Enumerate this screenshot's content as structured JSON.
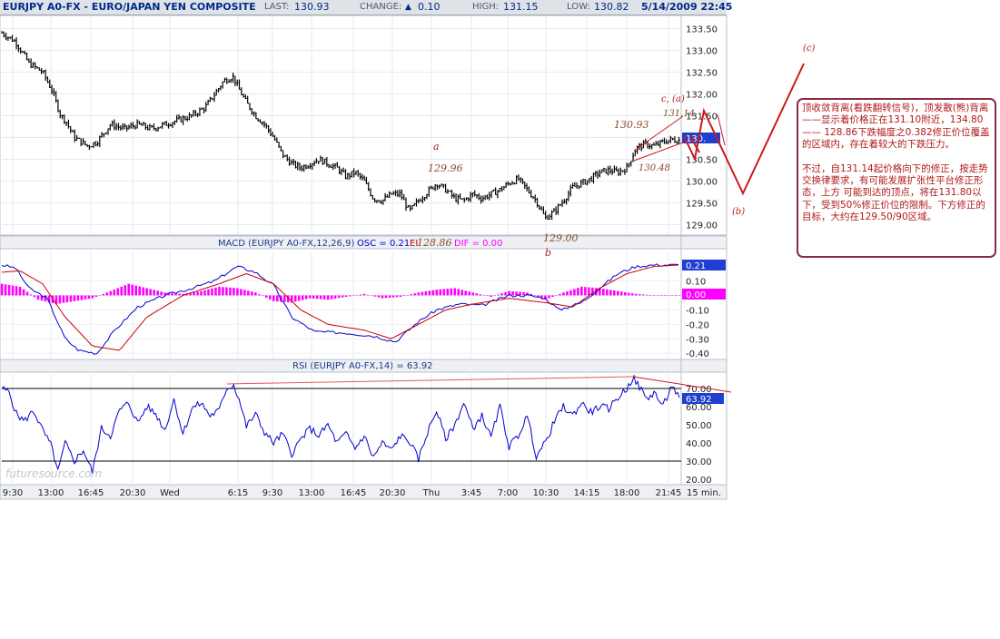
{
  "header": {
    "symbol": "EURJPY A0-FX - EURO/JAPAN YEN COMPOSITE",
    "last_label": "LAST:",
    "last_value": "130.93",
    "change_label": "CHANGE:",
    "change_arrow": "▲",
    "change_value": "0.10",
    "high_label": "HIGH:",
    "high_value": "131.15",
    "low_label": "LOW:",
    "low_value": "130.82",
    "datetime": "5/14/2009 22:45"
  },
  "colors": {
    "accent": "#002a8a",
    "macd_line": "#0000cc",
    "signal_line": "#cc0000",
    "histogram": "#ff00ff",
    "annotation": "#b01a1a",
    "annotation_value": "#8a4a2a"
  },
  "chart_data": [
    {
      "type": "bar",
      "name": "price",
      "ylim": [
        128.78,
        133.78
      ],
      "yticks": [
        "133.50",
        "133.00",
        "132.50",
        "132.00",
        "131.50",
        "131.00",
        "130.50",
        "130.00",
        "129.50",
        "129.00"
      ],
      "close_path_x": [
        0,
        15,
        30,
        45,
        55,
        65,
        70,
        80,
        95,
        105,
        120,
        135,
        150,
        165,
        180,
        195,
        210,
        225,
        235,
        245,
        255,
        262,
        270,
        280,
        290,
        300,
        310,
        320,
        330,
        340,
        350,
        360,
        370,
        380,
        390,
        400,
        410,
        420,
        430,
        440,
        450,
        460,
        470,
        480,
        490,
        500,
        510,
        520,
        530,
        540,
        550,
        560,
        570,
        580,
        590,
        600,
        610,
        620,
        630,
        640,
        650,
        660,
        670,
        680,
        690,
        700,
        710,
        720,
        730,
        740,
        748
      ],
      "close_path_y": [
        133.4,
        133.2,
        132.7,
        132.5,
        132.1,
        131.5,
        131.4,
        131.0,
        130.8,
        130.9,
        131.3,
        131.2,
        131.3,
        131.2,
        131.3,
        131.4,
        131.5,
        131.7,
        132.0,
        132.3,
        132.4,
        132.1,
        131.8,
        131.5,
        131.3,
        131.0,
        130.6,
        130.4,
        130.3,
        130.4,
        130.5,
        130.4,
        130.3,
        130.1,
        130.2,
        130.0,
        129.6,
        129.55,
        129.7,
        129.7,
        129.3,
        129.55,
        129.75,
        129.95,
        129.8,
        129.6,
        129.55,
        129.7,
        129.6,
        129.7,
        129.8,
        129.95,
        130.05,
        129.8,
        129.55,
        129.15,
        129.3,
        129.55,
        129.85,
        129.95,
        130.05,
        130.2,
        130.25,
        130.2,
        130.3,
        130.75,
        130.85,
        130.8,
        130.9,
        130.95,
        130.93
      ],
      "x_ticks": [
        "9:30",
        "13:00",
        "16:45",
        "20:30",
        "Wed",
        "6:15",
        "9:30",
        "13:00",
        "16:45",
        "20:30",
        "Thu",
        "3:45",
        "7:00",
        "10:30",
        "14:15",
        "18:00",
        "21:45"
      ],
      "x_unit": "15 min."
    },
    {
      "type": "line",
      "name": "MACD",
      "title": "MACD (EURJPY A0-FX,12,26,9)",
      "osc_label": "OSC = 0.21",
      "eu_label": "EI",
      "dif_label": "DIF = 0.00",
      "ylim": [
        -0.43,
        0.31
      ],
      "yticks": [
        "0.10",
        "0.00",
        "-0.10",
        "-0.20",
        "-0.30",
        "-0.40"
      ],
      "tag_macd": "0.21",
      "tag_hist": "0.00",
      "series": [
        {
          "key": "macd",
          "x": [
            0,
            15,
            30,
            50,
            70,
            85,
            105,
            125,
            150,
            180,
            210,
            235,
            260,
            280,
            300,
            320,
            345,
            380,
            410,
            435,
            460,
            480,
            505,
            530,
            560,
            580,
            600,
            615,
            640,
            660,
            680,
            700,
            720,
            748
          ],
          "values": [
            0.21,
            0.19,
            0.05,
            -0.02,
            -0.3,
            -0.38,
            -0.4,
            -0.24,
            -0.08,
            0.0,
            0.05,
            0.1,
            0.2,
            0.16,
            0.07,
            -0.15,
            -0.25,
            -0.26,
            -0.28,
            -0.32,
            -0.18,
            -0.1,
            -0.06,
            -0.07,
            0.0,
            0.0,
            -0.02,
            -0.1,
            -0.05,
            0.05,
            0.15,
            0.2,
            0.21,
            0.21
          ]
        },
        {
          "key": "signal",
          "x": [
            0,
            20,
            45,
            70,
            100,
            130,
            160,
            200,
            240,
            270,
            300,
            330,
            360,
            400,
            430,
            460,
            490,
            520,
            560,
            600,
            630,
            660,
            690,
            720,
            748
          ],
          "values": [
            0.16,
            0.17,
            0.08,
            -0.15,
            -0.35,
            -0.38,
            -0.15,
            0.0,
            0.08,
            0.15,
            0.08,
            -0.1,
            -0.2,
            -0.24,
            -0.3,
            -0.2,
            -0.1,
            -0.06,
            -0.02,
            -0.05,
            -0.08,
            0.05,
            0.15,
            0.2,
            0.21
          ]
        },
        {
          "key": "hist",
          "x": [
            0,
            20,
            40,
            60,
            80,
            100,
            120,
            140,
            160,
            180,
            200,
            220,
            240,
            260,
            280,
            300,
            320,
            340,
            360,
            380,
            400,
            420,
            440,
            460,
            480,
            500,
            520,
            540,
            560,
            580,
            600,
            620,
            640,
            660,
            680,
            700,
            720,
            748
          ],
          "values": [
            0.08,
            0.06,
            -0.03,
            -0.06,
            -0.04,
            -0.02,
            0.03,
            0.08,
            0.05,
            0.02,
            0.01,
            0.03,
            0.06,
            0.05,
            0.02,
            -0.04,
            -0.05,
            -0.02,
            -0.03,
            -0.01,
            0.01,
            -0.02,
            -0.01,
            0.02,
            0.04,
            0.05,
            0.02,
            -0.01,
            0.03,
            0.02,
            -0.03,
            0.02,
            0.06,
            0.05,
            0.03,
            0.01,
            0.0,
            0.0
          ]
        }
      ]
    },
    {
      "type": "line",
      "name": "RSI",
      "title": "RSI (EURJPY A0-FX,14) = 63.92",
      "ylim": [
        18,
        78
      ],
      "yticks": [
        "70.00",
        "60.00",
        "50.00",
        "40.00",
        "30.00",
        "20.00"
      ],
      "ref_lines": [
        70,
        30
      ],
      "tag": "63.92",
      "x": [
        0,
        8,
        16,
        25,
        35,
        45,
        55,
        62,
        70,
        80,
        90,
        100,
        110,
        120,
        130,
        140,
        150,
        160,
        170,
        180,
        190,
        200,
        210,
        220,
        230,
        240,
        248,
        256,
        262,
        270,
        280,
        290,
        300,
        310,
        320,
        330,
        340,
        350,
        360,
        370,
        380,
        390,
        400,
        410,
        420,
        430,
        440,
        450,
        460,
        470,
        480,
        490,
        500,
        510,
        520,
        530,
        540,
        550,
        560,
        570,
        580,
        590,
        600,
        610,
        620,
        630,
        640,
        650,
        660,
        670,
        680,
        690,
        697,
        705,
        712,
        720,
        730,
        740,
        748
      ],
      "values": [
        70,
        68,
        56,
        52,
        58,
        47,
        38,
        24,
        40,
        30,
        36,
        24,
        48,
        44,
        58,
        62,
        51,
        60,
        56,
        47,
        64,
        45,
        59,
        62,
        55,
        58,
        70,
        72,
        64,
        49,
        56,
        46,
        40,
        45,
        34,
        42,
        48,
        44,
        50,
        40,
        45,
        37,
        44,
        32,
        40,
        36,
        44,
        41,
        31,
        46,
        58,
        42,
        50,
        62,
        48,
        55,
        43,
        60,
        38,
        44,
        55,
        33,
        40,
        52,
        60,
        55,
        62,
        57,
        60,
        59,
        65,
        70,
        76,
        70,
        64,
        68,
        60,
        72,
        63.92
      ],
      "overlay_label": "futuresource.com"
    }
  ],
  "annotations": {
    "a_label": "a",
    "v12996": "129.96",
    "v12886": "128.86",
    "v12900": "129.00",
    "b_label": "b",
    "v13093": "130.93",
    "c_a_label": "c, (a)",
    "v13114": "131.14",
    "v13048": "130.48",
    "c_paren": "(c)",
    "b_paren": "(b)"
  },
  "note": {
    "para1": "顶收敛背离(看跌翻转信号)，顶发散(熊)背离 ——显示着价格正在131.10附近，134.80 —— 128.86下跌幅度之0.382修正价位覆盖的区域内，存在着较大的下跌压力。",
    "para2": "不过，自131.14起价格向下的修正，按走势交换律要求，有可能发展扩张性平台修正形态，上方 可能到达的顶点，将在131.80以下，受到50%修正价位的限制。下方修正的目标，大约在129.50/90区域。"
  }
}
